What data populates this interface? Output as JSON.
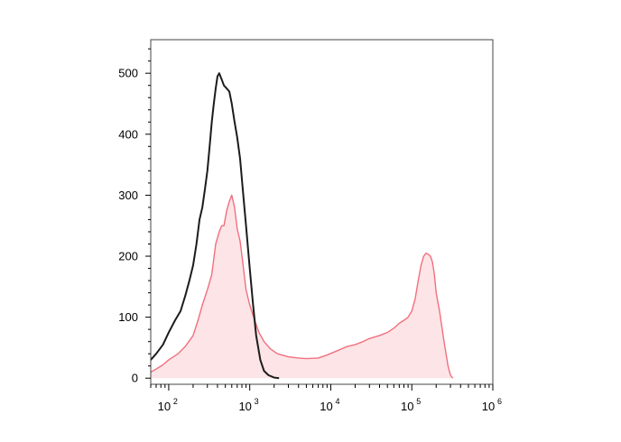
{
  "chart_data": {
    "type": "area",
    "title": "",
    "xlabel": "",
    "ylabel": "",
    "x_scale": "log",
    "xlim": [
      60,
      1000000
    ],
    "ylim": [
      -10,
      555
    ],
    "grid": false,
    "y_ticks": [
      {
        "value": 0,
        "label": "0"
      },
      {
        "value": 100,
        "label": "100"
      },
      {
        "value": 200,
        "label": "200"
      },
      {
        "value": 300,
        "label": "300"
      },
      {
        "value": 400,
        "label": "400"
      },
      {
        "value": 500,
        "label": "500"
      }
    ],
    "x_ticks": [
      {
        "value": 100,
        "base": "10",
        "exp": "2"
      },
      {
        "value": 1000,
        "base": "10",
        "exp": "3"
      },
      {
        "value": 10000,
        "base": "10",
        "exp": "4"
      },
      {
        "value": 100000,
        "base": "10",
        "exp": "5"
      },
      {
        "value": 1000000,
        "base": "10",
        "exp": "6"
      }
    ],
    "series": [
      {
        "style": "filled",
        "color": "#f0707f",
        "fill": "#fde4e6",
        "x": [
          60,
          70,
          85,
          100,
          130,
          160,
          200,
          230,
          260,
          300,
          340,
          380,
          420,
          450,
          480,
          520,
          560,
          600,
          650,
          700,
          760,
          820,
          900,
          1000,
          1150,
          1300,
          1500,
          1800,
          2200,
          3000,
          4000,
          5000,
          7000,
          9000,
          12000,
          16000,
          20000,
          25000,
          30000,
          40000,
          50000,
          60000,
          70000,
          80000,
          90000,
          100000,
          110000,
          120000,
          130000,
          140000,
          150000,
          160000,
          170000,
          180000,
          190000,
          200000,
          220000,
          250000,
          280000,
          300000,
          320000
        ],
        "y": [
          10,
          15,
          22,
          30,
          40,
          52,
          70,
          95,
          120,
          145,
          170,
          220,
          240,
          250,
          250,
          275,
          290,
          300,
          280,
          245,
          225,
          190,
          145,
          120,
          95,
          75,
          60,
          48,
          40,
          35,
          33,
          32,
          33,
          38,
          45,
          52,
          55,
          60,
          65,
          70,
          75,
          82,
          90,
          95,
          100,
          110,
          130,
          160,
          185,
          200,
          205,
          203,
          200,
          190,
          170,
          140,
          110,
          60,
          20,
          5,
          0
        ]
      },
      {
        "style": "line",
        "color": "#1c1c1c",
        "x": [
          60,
          70,
          85,
          100,
          120,
          140,
          160,
          180,
          200,
          220,
          240,
          260,
          280,
          300,
          320,
          340,
          360,
          380,
          400,
          420,
          450,
          480,
          520,
          560,
          600,
          650,
          700,
          760,
          820,
          900,
          1000,
          1100,
          1200,
          1350,
          1500,
          1700,
          2000,
          2300
        ],
        "y": [
          30,
          40,
          55,
          75,
          95,
          110,
          135,
          160,
          185,
          220,
          260,
          280,
          310,
          340,
          380,
          420,
          450,
          475,
          495,
          500,
          490,
          480,
          475,
          470,
          450,
          420,
          395,
          360,
          310,
          250,
          180,
          120,
          70,
          30,
          12,
          5,
          1,
          0
        ]
      }
    ]
  }
}
